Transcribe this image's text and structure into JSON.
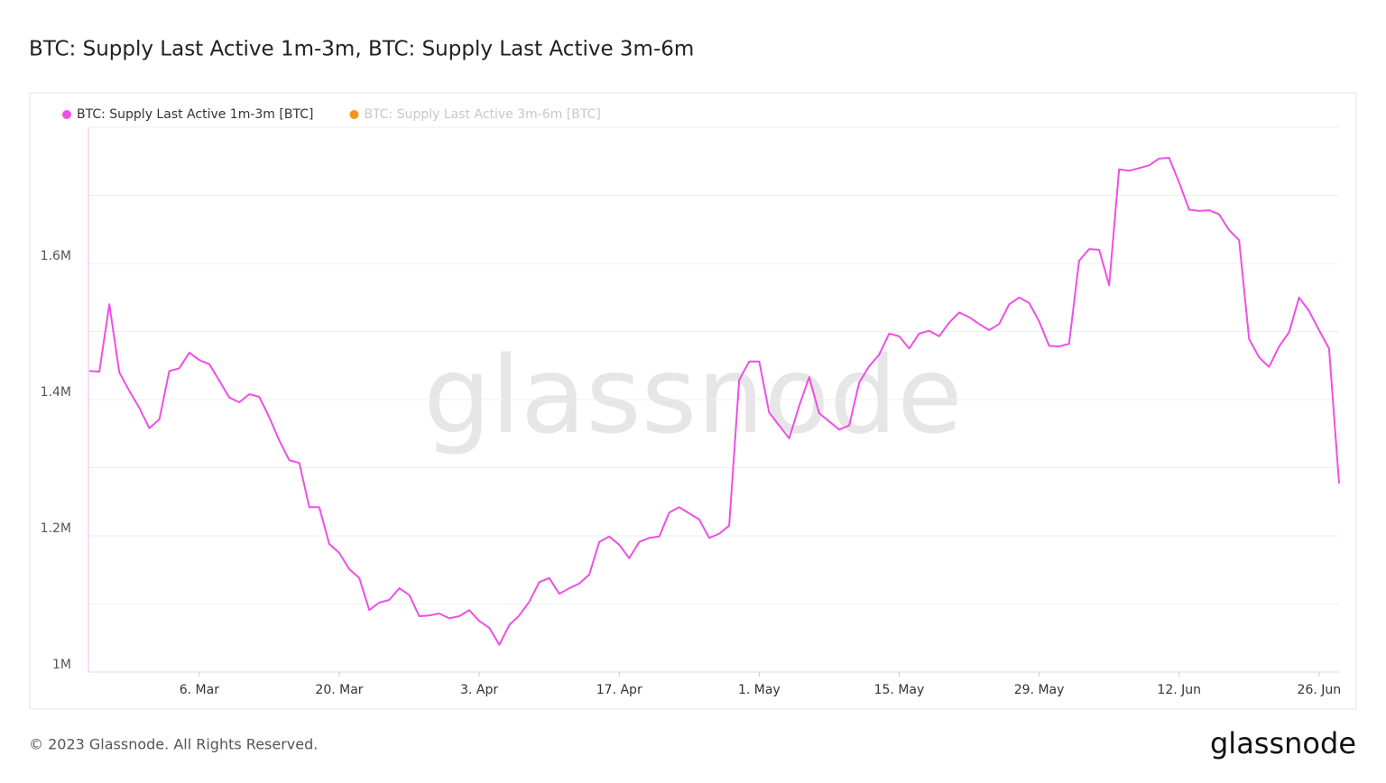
{
  "chart_data": {
    "type": "line",
    "title": "BTC: Supply Last Active 1m-3m, BTC: Supply Last Active 3m-6m",
    "watermark": "glassnode",
    "footer": "© 2023 Glassnode. All Rights Reserved.",
    "brand": "glassnode",
    "categories": [
      null,
      null,
      null,
      null,
      null,
      null,
      null,
      null,
      null,
      null,
      null,
      "6. Mar",
      null,
      null,
      null,
      null,
      null,
      null,
      null,
      null,
      null,
      null,
      null,
      null,
      null,
      "20. Mar",
      null,
      null,
      null,
      null,
      null,
      null,
      null,
      null,
      null,
      null,
      null,
      null,
      null,
      "3. Apr",
      null,
      null,
      null,
      null,
      null,
      null,
      null,
      null,
      null,
      null,
      null,
      null,
      null,
      "17. Apr",
      null,
      null,
      null,
      null,
      null,
      null,
      null,
      null,
      null,
      null,
      null,
      null,
      null,
      "1. May",
      null,
      null,
      null,
      null,
      null,
      null,
      null,
      null,
      null,
      null,
      null,
      null,
      null,
      "15. May",
      null,
      null,
      null,
      null,
      null,
      null,
      null,
      null,
      null,
      null,
      null,
      null,
      null,
      "29. May",
      null,
      null,
      null,
      null,
      null,
      null,
      null,
      null,
      null,
      null,
      null,
      null,
      null,
      "12. Jun",
      null,
      null,
      null,
      null,
      null,
      null,
      null,
      null,
      null,
      null,
      null,
      null,
      null,
      "26. Jun",
      null,
      null
    ],
    "series": [
      {
        "name": "BTC: Supply Last Active 1m-3m [BTC]",
        "color": "#ee4fe5",
        "visible": true,
        "values": [
          1442000,
          1441000,
          1540000,
          1440000,
          1413000,
          1388000,
          1358000,
          1371000,
          1442000,
          1446000,
          1469000,
          1458000,
          1452000,
          1428000,
          1403000,
          1396000,
          1408000,
          1404000,
          1374000,
          1340000,
          1311000,
          1307000,
          1242000,
          1242000,
          1188000,
          1175000,
          1151000,
          1138000,
          1091000,
          1102000,
          1106000,
          1123000,
          1113000,
          1082000,
          1083000,
          1086000,
          1079000,
          1082000,
          1091000,
          1075000,
          1065000,
          1040000,
          1069000,
          1083000,
          1103000,
          1132000,
          1138000,
          1115000,
          1123000,
          1130000,
          1143000,
          1191000,
          1199000,
          1187000,
          1167000,
          1191000,
          1197000,
          1199000,
          1234000,
          1242000,
          1233000,
          1224000,
          1197000,
          1203000,
          1215000,
          1429000,
          1456000,
          1456000,
          1381000,
          1362000,
          1343000,
          1391000,
          1433000,
          1380000,
          1368000,
          1356000,
          1362000,
          1425000,
          1449000,
          1466000,
          1497000,
          1493000,
          1475000,
          1497000,
          1501000,
          1493000,
          1513000,
          1528000,
          1521000,
          1511000,
          1502000,
          1511000,
          1540000,
          1550000,
          1542000,
          1515000,
          1479000,
          1478000,
          1482000,
          1604000,
          1621000,
          1620000,
          1568000,
          1738000,
          1736000,
          1740000,
          1744000,
          1754000,
          1755000,
          1719000,
          1679000,
          1677000,
          1678000,
          1672000,
          1649000,
          1634000,
          1489000,
          1462000,
          1448000,
          1478000,
          1499000,
          1550000,
          1530000,
          1502000,
          1475000,
          1277000
        ]
      },
      {
        "name": "BTC: Supply Last Active 3m-6m [BTC]",
        "color": "#f7931a",
        "visible": false
      }
    ],
    "ylim": [
      1000000,
      1800000
    ],
    "yticks": [
      {
        "value": 1000000,
        "label": "1M"
      },
      {
        "value": 1200000,
        "label": "1.2M"
      },
      {
        "value": 1400000,
        "label": "1.4M"
      },
      {
        "value": 1600000,
        "label": "1.6M"
      }
    ],
    "ygrid": [
      1100000,
      1200000,
      1300000,
      1400000,
      1500000,
      1600000,
      1700000,
      1800000
    ],
    "grid": true
  }
}
